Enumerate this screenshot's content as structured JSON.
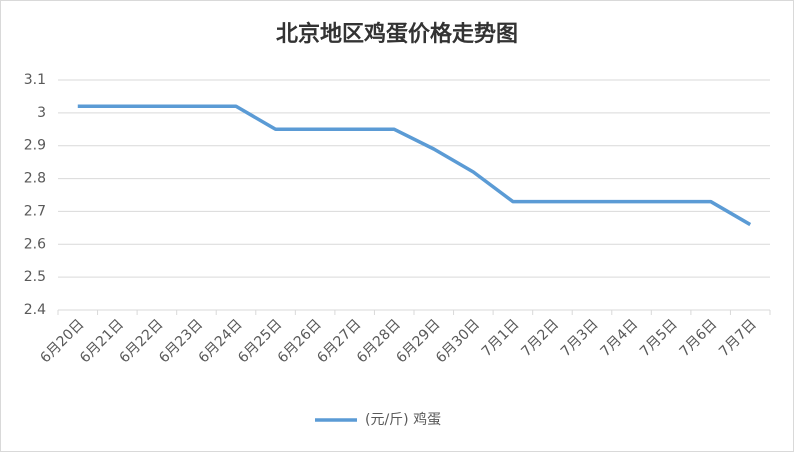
{
  "chart_data": {
    "type": "line",
    "title": "北京地区鸡蛋价格走势图",
    "categories": [
      "6月20日",
      "6月21日",
      "6月22日",
      "6月23日",
      "6月24日",
      "6月25日",
      "6月26日",
      "6月27日",
      "6月28日",
      "6月29日",
      "6月30日",
      "7月1日",
      "7月2日",
      "7月3日",
      "7月4日",
      "7月5日",
      "7月6日",
      "7月7日"
    ],
    "series": [
      {
        "name": "(元/斤) 鸡蛋",
        "color": "#5b9bd5",
        "values": [
          3.02,
          3.02,
          3.02,
          3.02,
          3.02,
          2.95,
          2.95,
          2.95,
          2.95,
          2.89,
          2.82,
          2.73,
          2.73,
          2.73,
          2.73,
          2.73,
          2.73,
          2.66
        ]
      }
    ],
    "ylim": [
      2.4,
      3.1
    ],
    "yticks": [
      2.4,
      2.5,
      2.6,
      2.7,
      2.8,
      2.9,
      3,
      3.1
    ],
    "grid": true,
    "legend": "bottom"
  }
}
